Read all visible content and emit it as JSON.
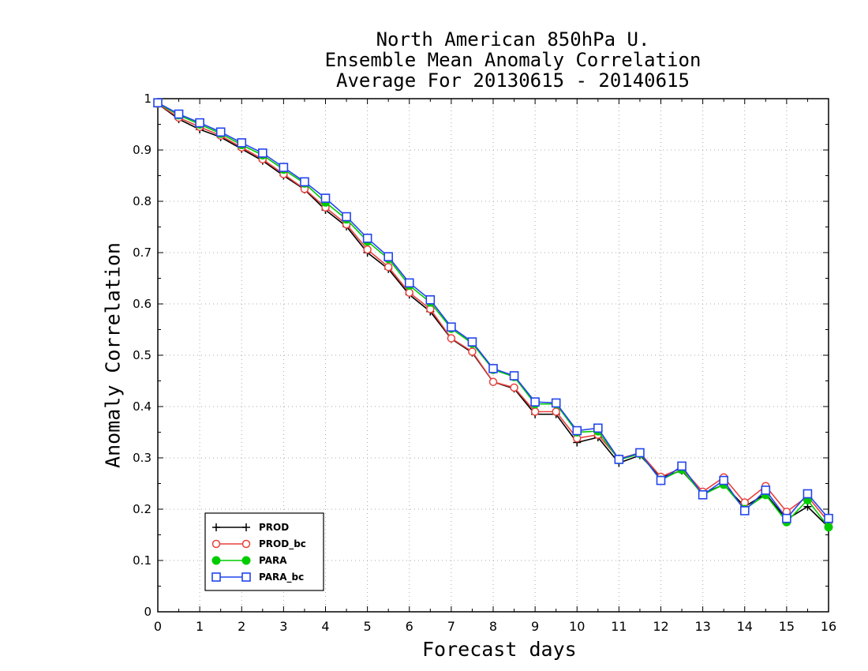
{
  "chart_data": {
    "type": "line",
    "title": [
      "North American 850hPa U.",
      "Ensemble Mean Anomaly Correlation",
      "Average For 20130615 - 20140615"
    ],
    "xlabel": "Forecast days",
    "ylabel": "Anomaly Correlation",
    "xlim": [
      0,
      16
    ],
    "ylim": [
      0,
      1
    ],
    "xticks": [
      "0",
      "1",
      "2",
      "3",
      "4",
      "5",
      "6",
      "7",
      "8",
      "9",
      "10",
      "11",
      "12",
      "13",
      "14",
      "15",
      "16"
    ],
    "yticks": [
      "0",
      "0.1",
      "0.2",
      "0.3",
      "0.4",
      "0.5",
      "0.6",
      "0.7",
      "0.8",
      "0.9",
      "1"
    ],
    "grid": true,
    "legend_position": "bottom-left",
    "x": [
      0,
      0.5,
      1,
      1.5,
      2,
      2.5,
      3,
      3.5,
      4,
      4.5,
      5,
      5.5,
      6,
      6.5,
      7,
      7.5,
      8,
      8.5,
      9,
      9.5,
      10,
      10.5,
      11,
      11.5,
      12,
      12.5,
      13,
      13.5,
      14,
      14.5,
      15,
      15.5,
      16
    ],
    "series": [
      {
        "name": "PROD",
        "color": "#000000",
        "marker": "plus",
        "values": [
          0.99,
          0.96,
          0.94,
          0.925,
          0.902,
          0.879,
          0.85,
          0.823,
          0.783,
          0.751,
          0.7,
          0.668,
          0.618,
          0.585,
          0.532,
          0.505,
          0.448,
          0.435,
          0.385,
          0.385,
          0.33,
          0.34,
          0.29,
          0.305,
          0.262,
          0.275,
          0.23,
          0.248,
          0.205,
          0.23,
          0.18,
          0.205,
          0.165
        ]
      },
      {
        "name": "PROD_bc",
        "color": "#e8413c",
        "marker": "circle",
        "values": [
          0.99,
          0.963,
          0.945,
          0.928,
          0.905,
          0.882,
          0.853,
          0.824,
          0.788,
          0.755,
          0.706,
          0.672,
          0.622,
          0.59,
          0.533,
          0.507,
          0.448,
          0.437,
          0.39,
          0.39,
          0.338,
          0.345,
          0.298,
          0.31,
          0.263,
          0.28,
          0.234,
          0.262,
          0.213,
          0.245,
          0.195,
          0.225,
          0.175
        ]
      },
      {
        "name": "PARA",
        "color": "#00cc00",
        "marker": "filled-circle",
        "values": [
          0.991,
          0.968,
          0.95,
          0.932,
          0.91,
          0.89,
          0.862,
          0.835,
          0.798,
          0.765,
          0.722,
          0.688,
          0.636,
          0.603,
          0.552,
          0.523,
          0.472,
          0.458,
          0.405,
          0.405,
          0.35,
          0.352,
          0.296,
          0.308,
          0.257,
          0.277,
          0.228,
          0.248,
          0.2,
          0.228,
          0.175,
          0.218,
          0.165
        ]
      },
      {
        "name": "PARA_bc",
        "color": "#2244ee",
        "marker": "square",
        "values": [
          0.992,
          0.97,
          0.953,
          0.935,
          0.914,
          0.894,
          0.866,
          0.838,
          0.806,
          0.77,
          0.728,
          0.692,
          0.641,
          0.608,
          0.555,
          0.526,
          0.474,
          0.46,
          0.409,
          0.407,
          0.353,
          0.358,
          0.297,
          0.31,
          0.256,
          0.284,
          0.228,
          0.256,
          0.197,
          0.237,
          0.182,
          0.23,
          0.182
        ]
      }
    ]
  }
}
